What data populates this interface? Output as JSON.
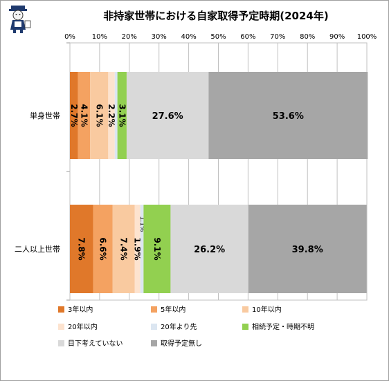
{
  "chart_data": {
    "type": "bar",
    "orientation": "horizontal",
    "stacked": "percent",
    "title": "非持家世帯における自家取得予定時期(2024年)",
    "categories": [
      "単身世帯",
      "二人以上世帯"
    ],
    "x_tick_labels": [
      "0%",
      "10%",
      "20%",
      "30%",
      "40%",
      "50%",
      "60%",
      "70%",
      "80%",
      "90%",
      "100%"
    ],
    "xlim": [
      0,
      100
    ],
    "grid": true,
    "legend_position": "bottom",
    "series": [
      {
        "name": "3年以内",
        "color": "#e0782a",
        "values": [
          2.7,
          7.8
        ],
        "labels": [
          "2.7%",
          "7.8%"
        ]
      },
      {
        "name": "5年以内",
        "color": "#f4a261",
        "values": [
          4.1,
          6.6
        ],
        "labels": [
          "4.1%",
          "6.6%"
        ]
      },
      {
        "name": "10年以内",
        "color": "#f9caa0",
        "values": [
          6.1,
          7.4
        ],
        "labels": [
          "6.1%",
          "7.4%"
        ]
      },
      {
        "name": "20年以内",
        "color": "#fde3cf",
        "values": [
          2.2,
          1.9
        ],
        "labels": [
          "2.2%",
          "1.9%"
        ]
      },
      {
        "name": "20年より先",
        "color": "#dce6f1",
        "values": [
          0.9,
          1.1
        ],
        "labels": [
          "",
          "1.1%"
        ]
      },
      {
        "name": "相続予定・時期不明",
        "color": "#92d050",
        "values": [
          3.1,
          9.1
        ],
        "labels": [
          "3.1%",
          "9.1%"
        ]
      },
      {
        "name": "目下考えていない",
        "color": "#d9d9d9",
        "values": [
          27.6,
          26.2
        ],
        "labels": [
          "27.6%",
          "26.2%"
        ]
      },
      {
        "name": "取得予定無し",
        "color": "#a6a6a6",
        "values": [
          53.6,
          39.8
        ],
        "labels": [
          "53.6%",
          "39.8%"
        ]
      }
    ]
  }
}
